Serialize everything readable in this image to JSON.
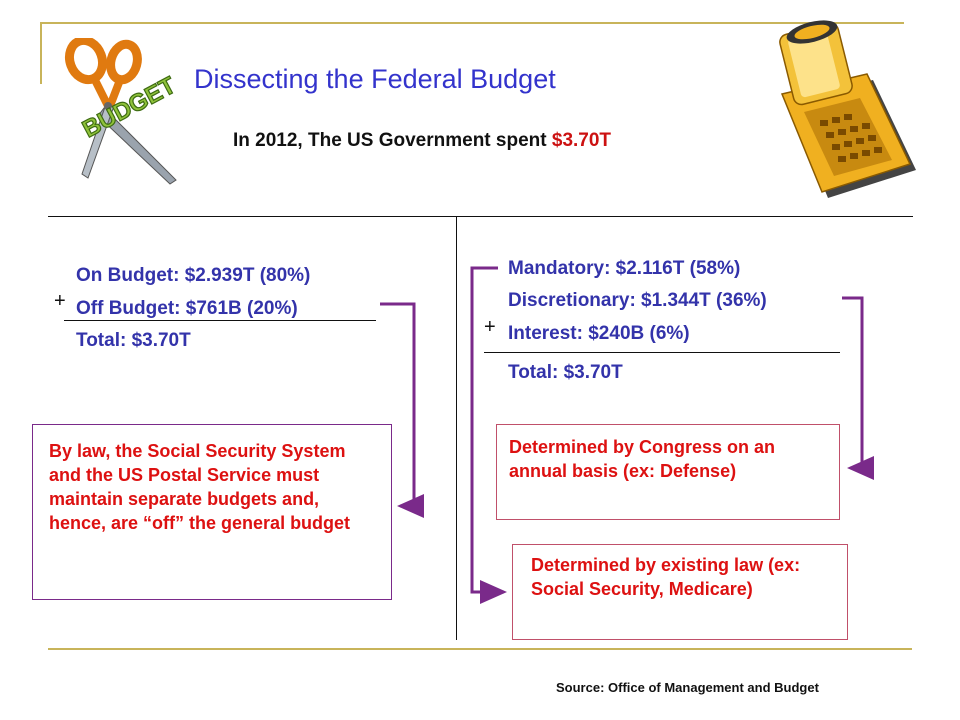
{
  "title": "Dissecting the Federal Budget",
  "subtitle": {
    "prefix": "In 2012,  The US Government spent ",
    "amount": "$3.70T"
  },
  "clipart": {
    "scissors_label": "BUDGET",
    "left_icon": "scissors-budget-icon",
    "right_icon": "adding-machine-icon"
  },
  "left": {
    "plus": "+",
    "lines": [
      "On Budget:  $2.939T (80%)",
      "Off Budget:  $761B (20%)"
    ],
    "total": "Total:  $3.70T",
    "note": "By law, the Social Security System and the US Postal Service must maintain separate budgets and, hence, are “off” the general budget"
  },
  "right": {
    "plus": "+",
    "lines": [
      "Mandatory:  $2.116T (58%)",
      "Discretionary:  $1.344T (36%)",
      "Interest:  $240B (6%)"
    ],
    "total": "Total:  $3.70T",
    "note_discretionary": "Determined by Congress on an annual basis (ex: Defense)",
    "note_mandatory": "Determined by existing law (ex: Social Security, Medicare)"
  },
  "source": "Source: Office of Management and Budget",
  "colors": {
    "title": "#3333cc",
    "text_blue": "#3333aa",
    "accent_red": "#cc1111",
    "arrow_purple": "#7a2a8a",
    "frame_gold": "#c8b45a"
  }
}
